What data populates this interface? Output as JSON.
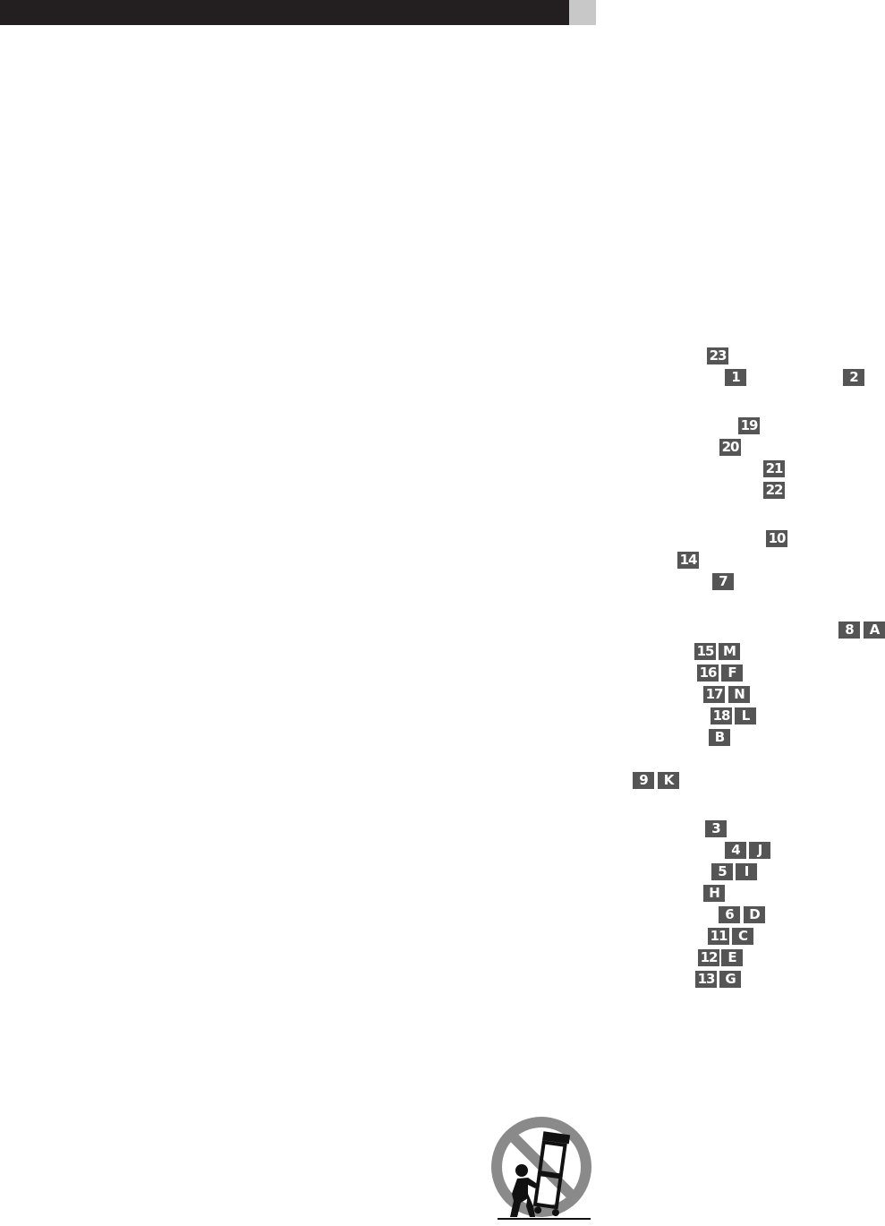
{
  "header": {
    "bar_color": "#231f20",
    "tab_color": "#c8c8c8"
  },
  "badge_color": "#555555",
  "badges": [
    "23",
    "1",
    "2",
    "19",
    "20",
    "21",
    "22",
    "10",
    "14",
    "7",
    "8",
    "A",
    "15",
    "M",
    "16",
    "F",
    "17",
    "N",
    "18",
    "L",
    "B",
    "9",
    "K",
    "3",
    "4",
    "J",
    "5",
    "I",
    "H",
    "6",
    "D",
    "11",
    "C",
    "12",
    "E",
    "13",
    "G"
  ],
  "symbol": {
    "icon": "cart-tip-over-warning-icon"
  }
}
